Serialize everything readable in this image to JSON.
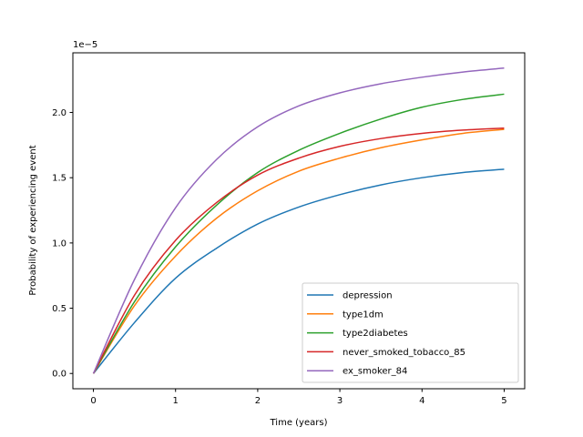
{
  "chart_data": {
    "type": "line",
    "xlabel": "Time (years)",
    "ylabel": "Probability of experiencing event",
    "y_offset_label": "1e−5",
    "xlim": [
      -0.25,
      5.25
    ],
    "ylim": [
      -1.17e-06,
      2.457e-05
    ],
    "xticks": [
      0,
      1,
      2,
      3,
      4,
      5
    ],
    "xtick_labels": [
      "0",
      "1",
      "2",
      "3",
      "4",
      "5"
    ],
    "yticks": [
      0,
      5e-06,
      1e-05,
      1.5e-05,
      2e-05
    ],
    "ytick_labels": [
      "0.0",
      "0.5",
      "1.0",
      "1.5",
      "2.0"
    ],
    "grid": false,
    "legend_position": "lower-right",
    "x": [
      0,
      0.5,
      1,
      1.5,
      2,
      2.5,
      3,
      3.5,
      4,
      4.5,
      5
    ],
    "series": [
      {
        "name": "depression",
        "color": "#1f77b4",
        "values": [
          0,
          3.9e-06,
          7.3e-06,
          9.6e-06,
          1.145e-05,
          1.275e-05,
          1.37e-05,
          1.445e-05,
          1.5e-05,
          1.54e-05,
          1.565e-05
        ]
      },
      {
        "name": "type1dm",
        "color": "#ff7f0e",
        "values": [
          0,
          5.2e-06,
          9e-06,
          1.19e-05,
          1.4e-05,
          1.55e-05,
          1.65e-05,
          1.73e-05,
          1.79e-05,
          1.84e-05,
          1.87e-05
        ]
      },
      {
        "name": "type2diabetes",
        "color": "#2ca02c",
        "values": [
          0,
          5.5e-06,
          9.7e-06,
          1.29e-05,
          1.54e-05,
          1.71e-05,
          1.84e-05,
          1.95e-05,
          2.04e-05,
          2.1e-05,
          2.14e-05
        ]
      },
      {
        "name": "never_smoked_tobacco_85",
        "color": "#d62728",
        "values": [
          0,
          6e-06,
          1.02e-05,
          1.31e-05,
          1.52e-05,
          1.65e-05,
          1.74e-05,
          1.8e-05,
          1.84e-05,
          1.865e-05,
          1.88e-05
        ]
      },
      {
        "name": "ex_smoker_84",
        "color": "#9467bd",
        "values": [
          0,
          7.2e-06,
          1.27e-05,
          1.64e-05,
          1.89e-05,
          2.05e-05,
          2.15e-05,
          2.22e-05,
          2.27e-05,
          2.31e-05,
          2.34e-05
        ]
      }
    ]
  }
}
